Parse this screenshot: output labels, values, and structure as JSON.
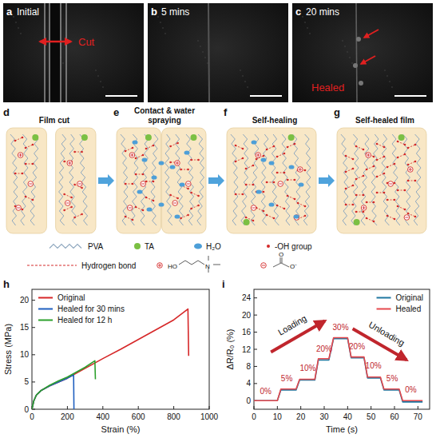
{
  "photos": [
    {
      "letter": "a",
      "caption": "Initial",
      "label": "Cut"
    },
    {
      "letter": "b",
      "caption": "5 mins"
    },
    {
      "letter": "c",
      "caption": "20 mins",
      "label": "Healed"
    }
  ],
  "schematic": {
    "steps": [
      {
        "letter": "d",
        "title": "Film cut"
      },
      {
        "letter": "e",
        "title": "Contact & water spraying"
      },
      {
        "letter": "f",
        "title": "Self-healing"
      },
      {
        "letter": "g",
        "title": "Self-healed film"
      }
    ],
    "legend": {
      "pva": "PVA",
      "ta": "TA",
      "water": "H₂O",
      "oh": "-OH group",
      "hbond": "Hydrogen bond",
      "cation_atoms": [
        "HO",
        "N"
      ],
      "anion_atoms": [
        "O",
        "O⁻"
      ]
    }
  },
  "chart_data": [
    {
      "panel": "h",
      "type": "line",
      "x_label": "Strain (%)",
      "y_label": "Stress (MPa)",
      "xlim": [
        0,
        1000
      ],
      "ylim": [
        0,
        22
      ],
      "xticks": [
        0,
        200,
        400,
        600,
        800,
        1000
      ],
      "yticks": [
        0,
        5,
        10,
        15,
        20
      ],
      "legend": "upper left",
      "series": [
        {
          "name": "Original",
          "color": "#d62728",
          "x": [
            0,
            10,
            25,
            50,
            100,
            150,
            200,
            300,
            400,
            500,
            600,
            700,
            800,
            880,
            884
          ],
          "values": [
            0,
            1.5,
            2.6,
            3.4,
            4.3,
            5.0,
            5.7,
            7.5,
            9.3,
            11.0,
            12.8,
            14.6,
            16.4,
            18.4,
            9.8
          ]
        },
        {
          "name": "Healed for 30 mins",
          "color": "#1f5fbf",
          "x": [
            0,
            10,
            25,
            50,
            100,
            150,
            200,
            235,
            237
          ],
          "values": [
            0,
            1.5,
            2.6,
            3.4,
            4.3,
            5.0,
            5.7,
            6.3,
            0
          ]
        },
        {
          "name": "Healed for 12 h",
          "color": "#2ca02c",
          "x": [
            0,
            10,
            25,
            50,
            100,
            150,
            200,
            300,
            355,
            358
          ],
          "values": [
            0,
            1.5,
            2.6,
            3.4,
            4.4,
            5.2,
            5.9,
            7.7,
            8.9,
            5.5
          ]
        }
      ]
    },
    {
      "panel": "i",
      "type": "line",
      "x_label": "Time (s)",
      "y_label": "ΔR/R₀ (%)",
      "xlim": [
        0,
        75
      ],
      "ylim": [
        -2,
        26
      ],
      "xticks": [
        0,
        10,
        20,
        30,
        40,
        50,
        60,
        70
      ],
      "yticks": [
        0,
        4,
        8,
        12,
        16,
        20,
        24
      ],
      "legend": "upper right",
      "series": [
        {
          "name": "Original",
          "color": "#1f77a0",
          "x": [
            0,
            10,
            11.5,
            18,
            19.5,
            26,
            27.5,
            32,
            34,
            40,
            41.5,
            47,
            48.5,
            54,
            55.5,
            62,
            63.5,
            72
          ],
          "values": [
            0,
            0,
            2.5,
            2.5,
            4.8,
            4.8,
            9.5,
            9.5,
            14.5,
            14.5,
            10,
            10,
            5.3,
            5.3,
            2.5,
            2.5,
            -0.3,
            -0.3
          ]
        },
        {
          "name": "Healed",
          "color": "#e5484d",
          "x": [
            0,
            10,
            11.5,
            18,
            19.5,
            26,
            27.5,
            32,
            34,
            40,
            41.5,
            47,
            48.5,
            54,
            55.5,
            62,
            63.5,
            72
          ],
          "values": [
            0,
            0,
            2.7,
            2.7,
            5.0,
            5.0,
            9.8,
            9.8,
            14.7,
            14.7,
            10.2,
            10.2,
            5.5,
            5.5,
            2.7,
            2.7,
            0,
            0
          ]
        }
      ],
      "annotations": [
        {
          "text": "0%",
          "x": 5,
          "y": 1.5
        },
        {
          "text": "5%",
          "x": 14,
          "y": 4.5
        },
        {
          "text": "10%",
          "x": 23,
          "y": 7
        },
        {
          "text": "20%",
          "x": 30,
          "y": 11.5
        },
        {
          "text": "30%",
          "x": 37,
          "y": 16.5
        },
        {
          "text": "20%",
          "x": 44,
          "y": 12
        },
        {
          "text": "10%",
          "x": 51,
          "y": 7.5
        },
        {
          "text": "5%",
          "x": 59,
          "y": 4.5
        },
        {
          "text": "0%",
          "x": 67,
          "y": 2
        },
        {
          "text": "Loading",
          "x": 17,
          "y": 17
        },
        {
          "text": "Unloading",
          "x": 56,
          "y": 15
        }
      ]
    }
  ]
}
